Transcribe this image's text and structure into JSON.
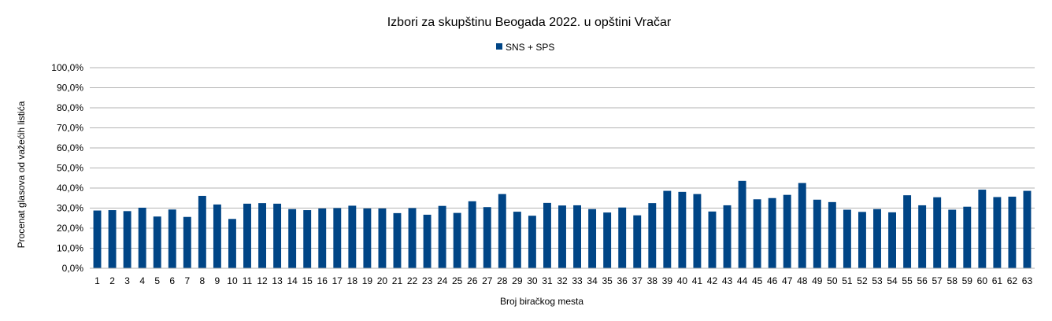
{
  "chart_data": {
    "type": "bar",
    "title": "Izbori za skupštinu Beogada 2022. u opštini Vračar",
    "xlabel": "Broj biračkog mesta",
    "ylabel": "Procenat glasova od važećih listića",
    "ylim": [
      0,
      100
    ],
    "y_ticks": [
      "0,0%",
      "10,0%",
      "20,0%",
      "30,0%",
      "40,0%",
      "50,0%",
      "60,0%",
      "70,0%",
      "80,0%",
      "90,0%",
      "100,0%"
    ],
    "grid": true,
    "legend_position": "top-center",
    "categories": [
      "1",
      "2",
      "3",
      "4",
      "5",
      "6",
      "7",
      "8",
      "9",
      "10",
      "11",
      "12",
      "13",
      "14",
      "15",
      "16",
      "17",
      "18",
      "19",
      "20",
      "21",
      "22",
      "23",
      "24",
      "25",
      "26",
      "27",
      "28",
      "29",
      "30",
      "31",
      "32",
      "33",
      "34",
      "35",
      "36",
      "37",
      "38",
      "39",
      "40",
      "41",
      "42",
      "43",
      "44",
      "45",
      "46",
      "47",
      "48",
      "49",
      "50",
      "51",
      "52",
      "53",
      "54",
      "55",
      "56",
      "57",
      "58",
      "59",
      "60",
      "61",
      "62",
      "63"
    ],
    "series": [
      {
        "name": "SNS + SPS",
        "color": "#004586",
        "values": [
          28.8,
          29.0,
          28.5,
          30.2,
          25.8,
          29.3,
          25.6,
          36.1,
          31.8,
          24.6,
          32.2,
          32.5,
          32.2,
          29.5,
          29.0,
          29.8,
          30.0,
          31.2,
          29.8,
          29.8,
          27.5,
          30.0,
          26.7,
          31.1,
          27.6,
          33.4,
          30.5,
          37.0,
          28.2,
          26.2,
          32.6,
          31.3,
          31.4,
          29.5,
          27.8,
          30.3,
          26.4,
          32.5,
          38.6,
          38.1,
          37.0,
          28.3,
          31.4,
          43.6,
          34.4,
          35.0,
          36.6,
          42.5,
          34.2,
          33.0,
          29.2,
          28.1,
          29.5,
          27.9,
          36.4,
          31.4,
          35.4,
          29.2,
          30.7,
          39.2,
          35.5,
          35.7,
          38.6
        ]
      }
    ]
  }
}
